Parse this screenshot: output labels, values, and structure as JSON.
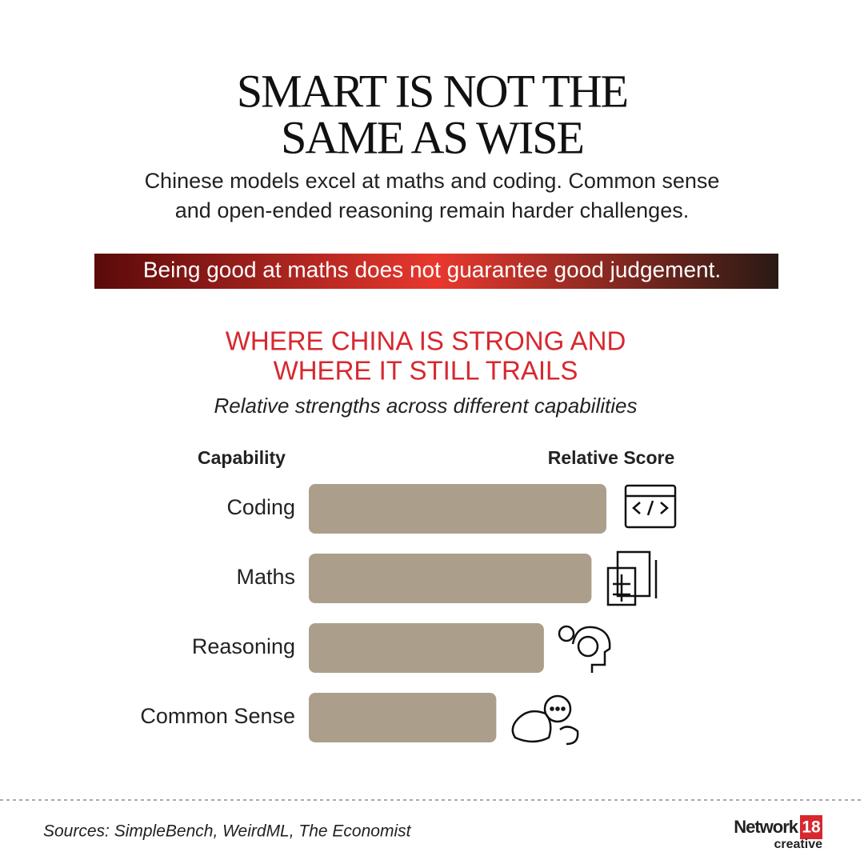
{
  "header": {
    "title": [
      "SMART IS NOT THE",
      "SAME AS WISE"
    ],
    "subtitle": [
      "Chinese models excel at maths and coding. Common sense",
      "and open-ended reasoning remain harder challenges."
    ],
    "callout": "Being good at maths does not guarantee good judgement."
  },
  "chart_data": {
    "type": "bar",
    "orientation": "horizontal",
    "title": [
      "WHERE CHINA IS STRONG AND",
      "WHERE IT STILL TRAILS"
    ],
    "subtitle": "Relative strengths across different capabilities",
    "category_header": "Capability",
    "value_header": "Relative Score",
    "categories": [
      "Coding",
      "Maths",
      "Reasoning",
      "Common Sense"
    ],
    "values": [
      100,
      95,
      79,
      63
    ],
    "color": "#ab9f8c",
    "xlim": [
      0,
      100
    ]
  },
  "footer": {
    "sources": "Sources: SimpleBench, WeirdML, The Economist",
    "logo": {
      "name": "Network",
      "number": "18",
      "tag": "creative"
    }
  }
}
